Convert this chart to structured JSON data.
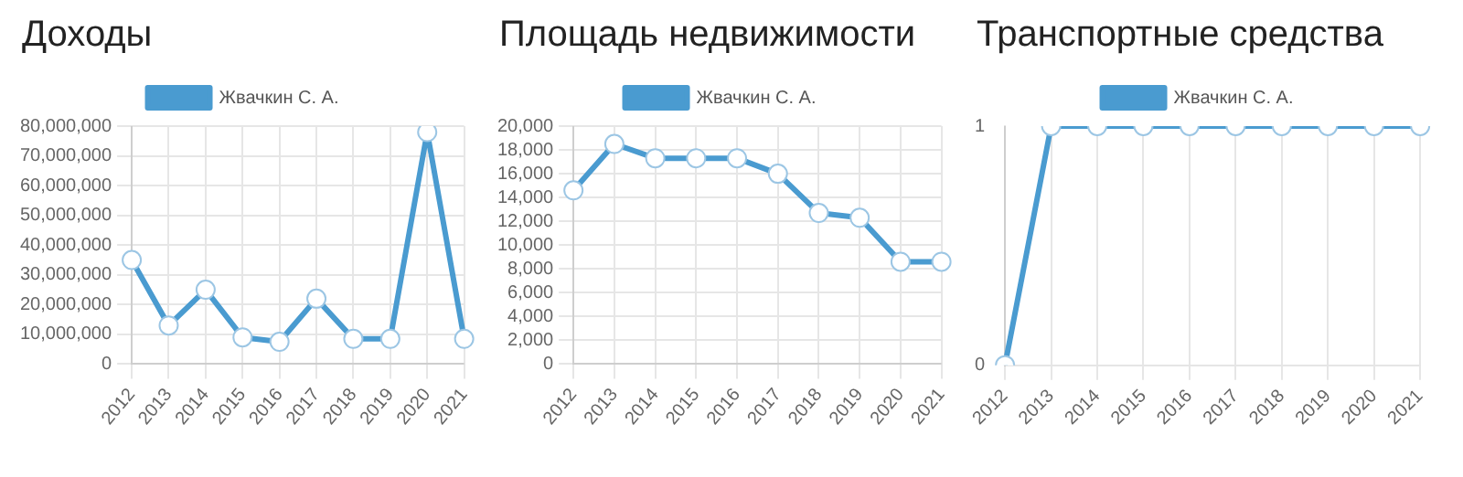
{
  "chart_data": [
    {
      "type": "line",
      "title": "Доходы",
      "categories": [
        "2012",
        "2013",
        "2014",
        "2015",
        "2016",
        "2017",
        "2018",
        "2019",
        "2020",
        "2021"
      ],
      "series": [
        {
          "name": "Жвачкин С. А.",
          "color": "#4a9bd0",
          "values": [
            35000000,
            13000000,
            25000000,
            9000000,
            7500000,
            22000000,
            8500000,
            8500000,
            78000000,
            8500000
          ]
        }
      ],
      "ylim": [
        0,
        80000000
      ],
      "yticks": [
        {
          "value": 0,
          "label": "0"
        },
        {
          "value": 10000000,
          "label": "10,000,000"
        },
        {
          "value": 20000000,
          "label": "20,000,000"
        },
        {
          "value": 30000000,
          "label": "30,000,000"
        },
        {
          "value": 40000000,
          "label": "40,000,000"
        },
        {
          "value": 50000000,
          "label": "50,000,000"
        },
        {
          "value": 60000000,
          "label": "60,000,000"
        },
        {
          "value": 70000000,
          "label": "70,000,000"
        },
        {
          "value": 80000000,
          "label": "80,000,000"
        }
      ],
      "grid": true,
      "legend": "top",
      "marker": "circle",
      "line_style": "solid"
    },
    {
      "type": "line",
      "title": "Площадь недвижимости",
      "categories": [
        "2012",
        "2013",
        "2014",
        "2015",
        "2016",
        "2017",
        "2018",
        "2019",
        "2020",
        "2021"
      ],
      "series": [
        {
          "name": "Жвачкин С. А.",
          "color": "#4a9bd0",
          "values": [
            14600,
            18500,
            17300,
            17300,
            17300,
            16000,
            12700,
            12300,
            8600,
            8600
          ]
        }
      ],
      "ylim": [
        0,
        20000
      ],
      "yticks": [
        {
          "value": 0,
          "label": "0"
        },
        {
          "value": 2000,
          "label": "2,000"
        },
        {
          "value": 4000,
          "label": "4,000"
        },
        {
          "value": 6000,
          "label": "6,000"
        },
        {
          "value": 8000,
          "label": "8,000"
        },
        {
          "value": 10000,
          "label": "10,000"
        },
        {
          "value": 12000,
          "label": "12,000"
        },
        {
          "value": 14000,
          "label": "14,000"
        },
        {
          "value": 16000,
          "label": "16,000"
        },
        {
          "value": 18000,
          "label": "18,000"
        },
        {
          "value": 20000,
          "label": "20,000"
        }
      ],
      "grid": true,
      "legend": "top",
      "marker": "circle",
      "line_style": "solid"
    },
    {
      "type": "line",
      "title": "Транспортные средства",
      "categories": [
        "2012",
        "2013",
        "2014",
        "2015",
        "2016",
        "2017",
        "2018",
        "2019",
        "2020",
        "2021"
      ],
      "series": [
        {
          "name": "Жвачкин С. А.",
          "color": "#4a9bd0",
          "values": [
            0,
            1,
            1,
            1,
            1,
            1,
            1,
            1,
            1,
            1
          ]
        }
      ],
      "ylim": [
        0,
        1
      ],
      "yticks": [
        0,
        1
      ],
      "grid": "x",
      "legend": "top",
      "marker": "circle",
      "line_style": "solid"
    }
  ]
}
